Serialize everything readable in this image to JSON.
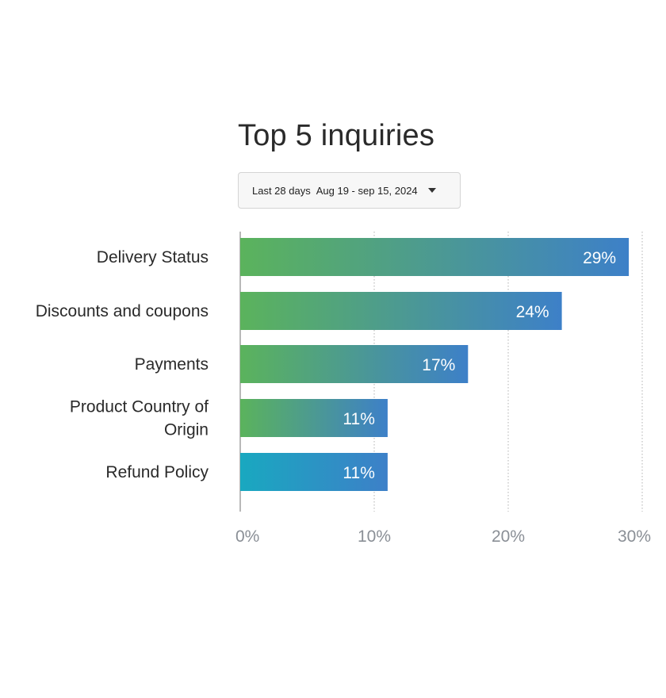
{
  "header": {
    "title": "Top 5 inquiries"
  },
  "date_filter": {
    "period": "Last 28 days",
    "range": "Aug 19 - sep 15, 2024"
  },
  "colors": {
    "gradient_green": "#5bb35c",
    "gradient_teal": "#19a8c0",
    "gradient_blue": "#3d80c8",
    "gridline": "#b0b0b0",
    "axis": "#8a8a8a",
    "tick_text": "#8a8f96"
  },
  "chart_data": {
    "type": "bar",
    "orientation": "horizontal",
    "title": "Top 5 inquiries",
    "categories": [
      [
        "Delivery Status"
      ],
      [
        "Discounts and coupons"
      ],
      [
        "Payments"
      ],
      [
        "Product Country of",
        "Origin"
      ],
      [
        "Refund Policy"
      ]
    ],
    "values": [
      29,
      24,
      17,
      11,
      11
    ],
    "value_labels": [
      "29%",
      "24%",
      "17%",
      "11%",
      "11%"
    ],
    "bar_start_colors": [
      "#5bb35c",
      "#5bb35c",
      "#5bb35c",
      "#5bb35c",
      "#19a8c0"
    ],
    "xlim": [
      0,
      30
    ],
    "xticks": [
      0,
      10,
      20,
      30
    ],
    "xtick_labels": [
      "0%",
      "10%",
      "20%",
      "30%"
    ],
    "grid": "vertical dotted"
  }
}
